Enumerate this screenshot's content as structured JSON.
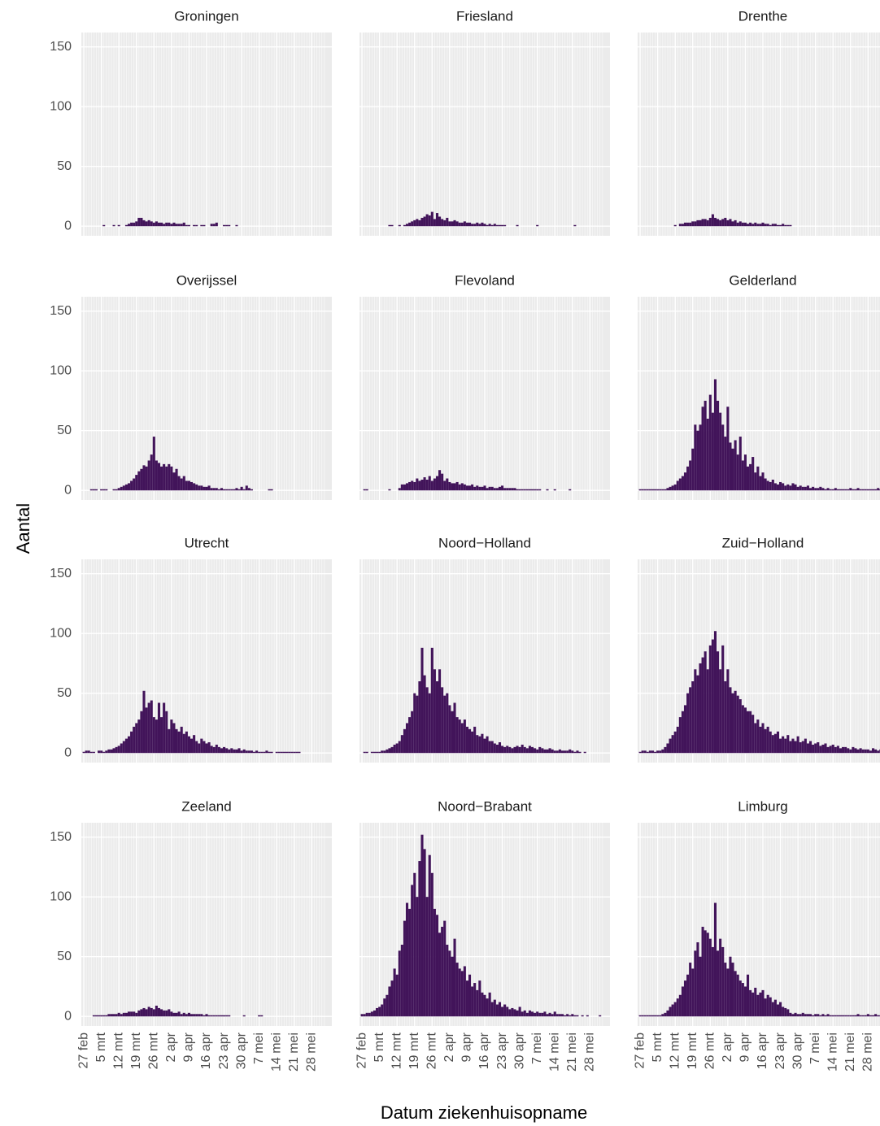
{
  "chart_data": {
    "type": "bar",
    "ylabel": "Aantal",
    "xlabel": "Datum ziekenhuisopname",
    "color": "#42145a",
    "grid": true,
    "ylim": [
      -8,
      162
    ],
    "yticks": [
      0,
      50,
      100,
      150
    ],
    "xlim": [
      -1,
      99
    ],
    "xticks": [
      {
        "value": 0,
        "label": "27 feb"
      },
      {
        "value": 7,
        "label": "5 mrt"
      },
      {
        "value": 14,
        "label": "12 mrt"
      },
      {
        "value": 21,
        "label": "19 mrt"
      },
      {
        "value": 28,
        "label": "26 mrt"
      },
      {
        "value": 35,
        "label": "2 apr"
      },
      {
        "value": 42,
        "label": "9 apr"
      },
      {
        "value": 49,
        "label": "16 apr"
      },
      {
        "value": 56,
        "label": "23 apr"
      },
      {
        "value": 63,
        "label": "30 apr"
      },
      {
        "value": 70,
        "label": "7 mei"
      },
      {
        "value": 77,
        "label": "14 mei"
      },
      {
        "value": 84,
        "label": "21 mei"
      },
      {
        "value": 91,
        "label": "28 mei"
      }
    ],
    "x": [
      0,
      1,
      2,
      3,
      4,
      5,
      6,
      7,
      8,
      9,
      10,
      11,
      12,
      13,
      14,
      15,
      16,
      17,
      18,
      19,
      20,
      21,
      22,
      23,
      24,
      25,
      26,
      27,
      28,
      29,
      30,
      31,
      32,
      33,
      34,
      35,
      36,
      37,
      38,
      39,
      40,
      41,
      42,
      43,
      44,
      45,
      46,
      47,
      48,
      49,
      50,
      51,
      52,
      53,
      54,
      55,
      56,
      57,
      58,
      59,
      60,
      61,
      62,
      63,
      64,
      65,
      66,
      67,
      68,
      69,
      70,
      71,
      72,
      73,
      74,
      75,
      76,
      77,
      78,
      79,
      80,
      81,
      82,
      83,
      84,
      85,
      86,
      87,
      88,
      89,
      90,
      91,
      92,
      93,
      94,
      95,
      96
    ],
    "facets": [
      {
        "title": "Groningen",
        "values": [
          null,
          null,
          null,
          null,
          null,
          null,
          null,
          null,
          1,
          null,
          null,
          null,
          1,
          null,
          1,
          null,
          null,
          1,
          2,
          3,
          3,
          4,
          7,
          7,
          5,
          4,
          5,
          4,
          3,
          4,
          3,
          3,
          2,
          3,
          3,
          2,
          3,
          2,
          2,
          2,
          3,
          1,
          1,
          null,
          1,
          1,
          null,
          1,
          1,
          null,
          null,
          2,
          2,
          3,
          null,
          null,
          1,
          1,
          1,
          null,
          null,
          1,
          null,
          null,
          null,
          null,
          null,
          null,
          null,
          null,
          null,
          null,
          null,
          null,
          null,
          null,
          null,
          null,
          null,
          null,
          null,
          null,
          null,
          null,
          null,
          null,
          null,
          null,
          null,
          null,
          null,
          null,
          null,
          null,
          null,
          null,
          null
        ]
      },
      {
        "title": "Friesland",
        "values": [
          null,
          null,
          null,
          null,
          null,
          null,
          null,
          null,
          null,
          null,
          null,
          1,
          1,
          null,
          null,
          1,
          null,
          1,
          2,
          3,
          4,
          5,
          6,
          5,
          7,
          8,
          10,
          9,
          12,
          6,
          11,
          8,
          6,
          5,
          7,
          4,
          4,
          5,
          4,
          3,
          3,
          4,
          3,
          3,
          2,
          2,
          3,
          2,
          3,
          2,
          1,
          2,
          1,
          2,
          1,
          1,
          1,
          1,
          null,
          null,
          null,
          null,
          1,
          null,
          null,
          null,
          null,
          null,
          null,
          null,
          1,
          null,
          null,
          null,
          null,
          null,
          null,
          null,
          null,
          null,
          null,
          null,
          null,
          null,
          null,
          1,
          null,
          null,
          null,
          null,
          null,
          null,
          null,
          null,
          null,
          null,
          null
        ]
      },
      {
        "title": "Drenthe",
        "values": [
          null,
          null,
          null,
          null,
          null,
          null,
          null,
          null,
          null,
          null,
          null,
          null,
          null,
          null,
          1,
          null,
          2,
          2,
          3,
          3,
          3,
          4,
          4,
          5,
          5,
          6,
          6,
          5,
          7,
          10,
          7,
          6,
          5,
          6,
          7,
          5,
          6,
          4,
          5,
          3,
          4,
          3,
          3,
          2,
          3,
          2,
          3,
          2,
          2,
          3,
          2,
          2,
          1,
          2,
          2,
          1,
          1,
          2,
          1,
          1,
          1,
          null,
          null,
          null,
          null,
          null,
          null,
          null,
          null,
          null,
          null,
          null,
          null,
          null,
          null,
          null,
          null,
          null,
          null,
          null,
          null,
          null,
          null,
          null,
          null,
          null,
          null,
          null,
          null,
          null,
          null,
          null,
          null,
          null,
          null,
          null,
          null
        ]
      },
      {
        "title": "Overijssel",
        "values": [
          null,
          null,
          null,
          1,
          1,
          1,
          null,
          1,
          1,
          1,
          null,
          null,
          1,
          1,
          2,
          3,
          4,
          5,
          6,
          8,
          10,
          13,
          16,
          18,
          21,
          20,
          25,
          30,
          45,
          25,
          23,
          20,
          22,
          20,
          22,
          20,
          15,
          18,
          12,
          10,
          12,
          8,
          8,
          7,
          6,
          5,
          4,
          4,
          3,
          3,
          4,
          2,
          2,
          2,
          1,
          2,
          1,
          1,
          1,
          1,
          1,
          2,
          1,
          3,
          1,
          4,
          2,
          1,
          null,
          null,
          null,
          null,
          null,
          null,
          1,
          1,
          null,
          null,
          null,
          null,
          null,
          null,
          null,
          null,
          null,
          null,
          null,
          null,
          null,
          null,
          null,
          null,
          null,
          null,
          null,
          null,
          null
        ]
      },
      {
        "title": "Flevoland",
        "values": [
          null,
          1,
          1,
          null,
          null,
          null,
          null,
          null,
          null,
          null,
          null,
          1,
          null,
          null,
          null,
          2,
          5,
          5,
          6,
          7,
          8,
          7,
          10,
          8,
          9,
          11,
          9,
          12,
          8,
          10,
          12,
          17,
          14,
          8,
          10,
          7,
          6,
          6,
          7,
          5,
          6,
          5,
          4,
          4,
          5,
          3,
          4,
          3,
          3,
          4,
          2,
          3,
          3,
          2,
          2,
          3,
          4,
          2,
          2,
          2,
          2,
          2,
          1,
          1,
          1,
          1,
          1,
          1,
          1,
          1,
          1,
          1,
          null,
          null,
          1,
          null,
          null,
          1,
          null,
          null,
          null,
          null,
          null,
          1,
          null,
          null,
          null,
          null,
          null,
          null,
          null,
          null,
          null,
          null,
          null,
          null,
          null
        ]
      },
      {
        "title": "Gelderland",
        "values": [
          1,
          1,
          1,
          1,
          1,
          1,
          1,
          1,
          1,
          1,
          1,
          2,
          3,
          4,
          5,
          8,
          10,
          12,
          15,
          20,
          25,
          35,
          55,
          50,
          55,
          70,
          75,
          60,
          80,
          65,
          93,
          75,
          65,
          55,
          45,
          70,
          40,
          35,
          42,
          30,
          45,
          25,
          30,
          20,
          22,
          28,
          15,
          20,
          12,
          15,
          10,
          8,
          7,
          9,
          6,
          5,
          7,
          6,
          4,
          5,
          4,
          6,
          5,
          3,
          4,
          3,
          3,
          4,
          2,
          3,
          2,
          2,
          3,
          2,
          1,
          2,
          1,
          1,
          2,
          1,
          1,
          1,
          1,
          1,
          2,
          1,
          1,
          2,
          1,
          1,
          1,
          1,
          1,
          1,
          1,
          2,
          1
        ]
      },
      {
        "title": "Utrecht",
        "values": [
          1,
          2,
          2,
          1,
          1,
          null,
          2,
          2,
          1,
          2,
          3,
          3,
          4,
          5,
          6,
          8,
          10,
          12,
          14,
          18,
          22,
          25,
          28,
          35,
          52,
          38,
          42,
          44,
          30,
          28,
          42,
          30,
          42,
          35,
          20,
          28,
          25,
          20,
          18,
          22,
          16,
          18,
          14,
          12,
          15,
          10,
          8,
          12,
          10,
          8,
          9,
          6,
          5,
          7,
          5,
          4,
          5,
          4,
          3,
          4,
          3,
          3,
          4,
          2,
          3,
          2,
          2,
          2,
          1,
          2,
          1,
          1,
          1,
          2,
          1,
          1,
          null,
          1,
          1,
          1,
          1,
          1,
          1,
          1,
          1,
          1,
          1,
          null,
          null,
          null,
          null,
          null,
          null,
          null,
          null,
          null,
          null
        ]
      },
      {
        "title": "Noord−Holland",
        "values": [
          null,
          1,
          1,
          null,
          1,
          1,
          1,
          1,
          2,
          2,
          3,
          4,
          5,
          7,
          8,
          10,
          15,
          20,
          25,
          30,
          35,
          50,
          48,
          60,
          88,
          65,
          55,
          50,
          88,
          70,
          60,
          70,
          55,
          48,
          50,
          40,
          35,
          42,
          30,
          28,
          25,
          28,
          22,
          20,
          18,
          22,
          15,
          14,
          16,
          12,
          14,
          10,
          10,
          8,
          7,
          9,
          6,
          5,
          6,
          5,
          4,
          5,
          6,
          5,
          7,
          5,
          4,
          6,
          5,
          4,
          3,
          5,
          4,
          3,
          3,
          4,
          3,
          2,
          2,
          3,
          2,
          2,
          2,
          3,
          2,
          1,
          2,
          1,
          null,
          1,
          null,
          null,
          null,
          null,
          null,
          null,
          null
        ]
      },
      {
        "title": "Zuid−Holland",
        "values": [
          1,
          2,
          2,
          1,
          2,
          2,
          1,
          2,
          2,
          3,
          5,
          8,
          12,
          15,
          18,
          22,
          30,
          35,
          40,
          50,
          55,
          60,
          70,
          65,
          75,
          80,
          85,
          70,
          90,
          95,
          102,
          85,
          70,
          90,
          60,
          70,
          55,
          50,
          52,
          48,
          45,
          40,
          38,
          35,
          35,
          32,
          25,
          28,
          22,
          25,
          20,
          22,
          18,
          15,
          16,
          18,
          12,
          14,
          12,
          15,
          10,
          12,
          10,
          14,
          9,
          10,
          12,
          8,
          10,
          7,
          8,
          9,
          6,
          7,
          8,
          5,
          6,
          7,
          5,
          6,
          4,
          5,
          5,
          4,
          3,
          5,
          4,
          3,
          4,
          3,
          3,
          3,
          2,
          4,
          3,
          2,
          3
        ]
      },
      {
        "title": "Zeeland",
        "values": [
          null,
          null,
          null,
          null,
          1,
          1,
          1,
          1,
          1,
          1,
          2,
          2,
          2,
          2,
          3,
          2,
          3,
          3,
          4,
          4,
          4,
          3,
          5,
          6,
          7,
          6,
          8,
          7,
          6,
          9,
          7,
          6,
          5,
          5,
          6,
          4,
          3,
          3,
          4,
          2,
          3,
          2,
          3,
          2,
          2,
          2,
          2,
          2,
          1,
          2,
          1,
          1,
          1,
          1,
          1,
          1,
          1,
          1,
          1,
          null,
          null,
          null,
          null,
          null,
          1,
          null,
          null,
          null,
          null,
          null,
          1,
          1,
          null,
          null,
          null,
          null,
          null,
          null,
          null,
          null,
          null,
          null,
          null,
          null,
          null,
          null,
          null,
          null,
          null,
          null,
          null,
          null,
          null,
          null,
          null,
          null,
          null
        ]
      },
      {
        "title": "Noord−Brabant",
        "values": [
          2,
          2,
          3,
          3,
          4,
          5,
          7,
          8,
          10,
          15,
          18,
          25,
          30,
          40,
          35,
          55,
          60,
          80,
          95,
          90,
          110,
          120,
          100,
          130,
          152,
          140,
          100,
          135,
          120,
          90,
          85,
          70,
          75,
          80,
          60,
          55,
          50,
          65,
          45,
          40,
          38,
          42,
          30,
          35,
          25,
          28,
          22,
          30,
          20,
          18,
          15,
          20,
          12,
          14,
          10,
          12,
          8,
          10,
          8,
          6,
          7,
          6,
          5,
          8,
          4,
          5,
          3,
          5,
          4,
          3,
          4,
          3,
          3,
          4,
          2,
          3,
          2,
          4,
          2,
          2,
          2,
          1,
          2,
          1,
          2,
          1,
          1,
          null,
          1,
          null,
          1,
          null,
          null,
          null,
          null,
          1,
          null
        ]
      },
      {
        "title": "Limburg",
        "values": [
          1,
          1,
          1,
          1,
          1,
          1,
          1,
          1,
          1,
          2,
          3,
          5,
          8,
          10,
          12,
          15,
          18,
          25,
          30,
          35,
          45,
          40,
          55,
          62,
          50,
          75,
          72,
          70,
          65,
          58,
          95,
          55,
          65,
          58,
          45,
          40,
          50,
          45,
          38,
          35,
          30,
          28,
          25,
          35,
          22,
          20,
          24,
          18,
          20,
          22,
          15,
          18,
          16,
          12,
          14,
          10,
          12,
          8,
          7,
          6,
          3,
          2,
          3,
          2,
          2,
          3,
          2,
          2,
          2,
          1,
          2,
          2,
          1,
          2,
          1,
          2,
          1,
          1,
          1,
          1,
          1,
          1,
          1,
          1,
          1,
          1,
          1,
          2,
          1,
          1,
          1,
          2,
          1,
          1,
          2,
          1,
          1
        ]
      }
    ]
  }
}
